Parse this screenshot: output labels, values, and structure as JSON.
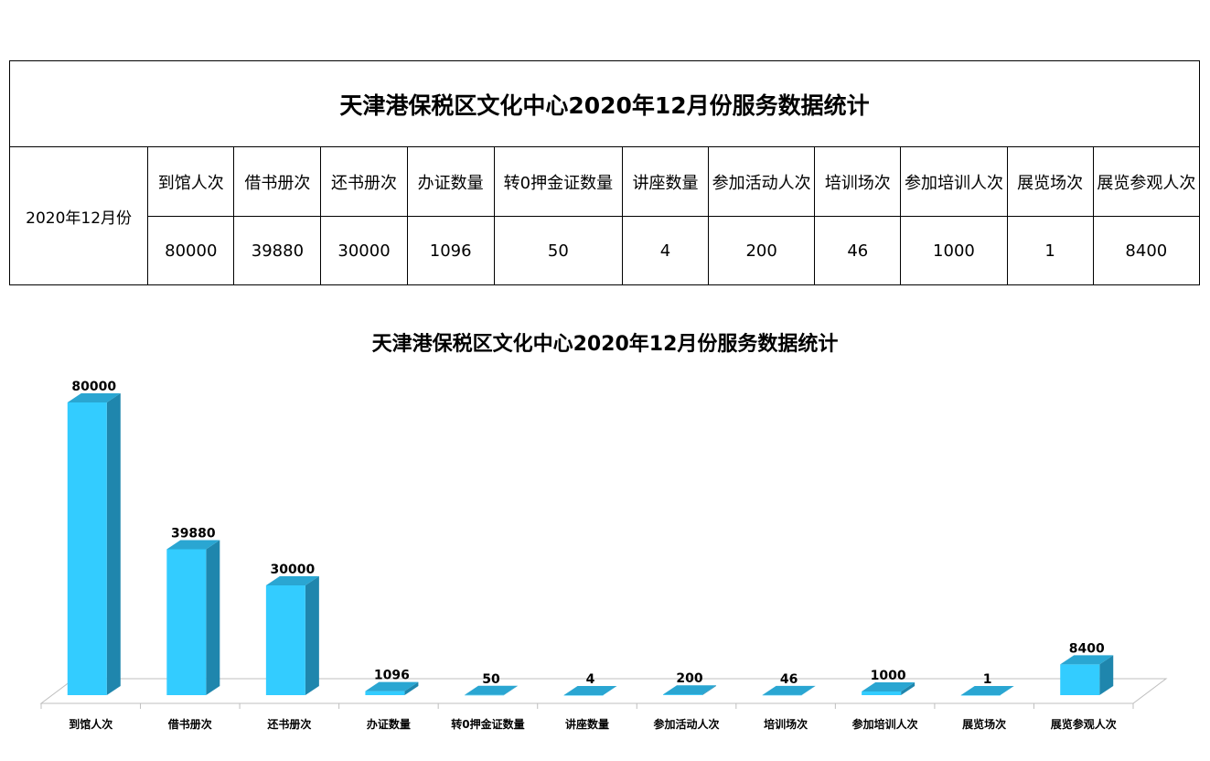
{
  "table": {
    "title": "天津港保税区文化中心2020年12月份服务数据统计",
    "period": "2020年12月份",
    "headers": [
      "到馆人次",
      "借书册次",
      "还书册次",
      "办证数量",
      "转0押金证数量",
      "讲座数量",
      "参加活动人次",
      "培训场次",
      "参加培训人次",
      "展览场次",
      "展览参观人次"
    ],
    "values": [
      "80000",
      "39880",
      "30000",
      "1096",
      "50",
      "4",
      "200",
      "46",
      "1000",
      "1",
      "8400"
    ]
  },
  "colors": {
    "bar_front": "#33ccff",
    "bar_top": "#2aa6d2",
    "bar_side": "#1f86ad"
  },
  "chart_data": {
    "type": "bar",
    "title": "天津港保税区文化中心2020年12月份服务数据统计",
    "categories": [
      "到馆人次",
      "借书册次",
      "还书册次",
      "办证数量",
      "转0押金证数量",
      "讲座数量",
      "参加活动人次",
      "培训场次",
      "参加培训人次",
      "展览场次",
      "展览参观人次"
    ],
    "values": [
      80000,
      39880,
      30000,
      1096,
      50,
      4,
      200,
      46,
      1000,
      1,
      8400
    ],
    "ylim": [
      0,
      80000
    ],
    "style": "3d",
    "grid": false,
    "legend": "none"
  }
}
